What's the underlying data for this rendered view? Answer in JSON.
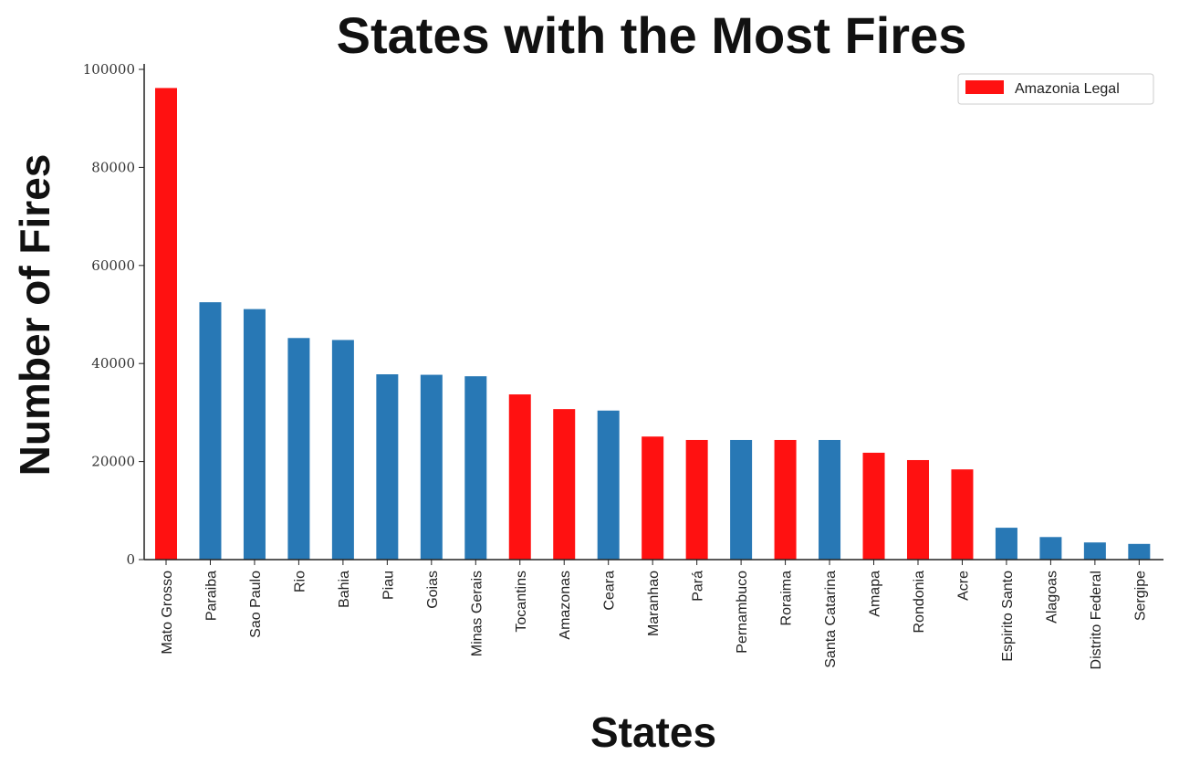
{
  "chart_data": {
    "type": "bar",
    "title": "States with the Most Fires",
    "xlabel": "States",
    "ylabel": "Number of Fires",
    "ylim": [
      0,
      100000
    ],
    "yticks": [
      0,
      20000,
      40000,
      60000,
      80000,
      100000
    ],
    "ytick_labels": [
      "0",
      "20000",
      "40000",
      "60000",
      "80000",
      "100000"
    ],
    "grid": false,
    "legend": {
      "placement": "top-right",
      "entries": [
        {
          "label": "Amazonia Legal",
          "color": "#ff1111"
        }
      ]
    },
    "colors": {
      "amazonia_legal": "#ff1111",
      "other": "#2878b5"
    },
    "categories": [
      "Mato Grosso",
      "Paraiba",
      "Sao Paulo",
      "Rio",
      "Bahia",
      "Piau",
      "Goias",
      "Minas Gerais",
      "Tocantins",
      "Amazonas",
      "Ceara",
      "Maranhao",
      "Pará",
      "Pernambuco",
      "Roraima",
      "Santa Catarina",
      "Amapa",
      "Rondonia",
      "Acre",
      "Espirito Santo",
      "Alagoas",
      "Distrito Federal",
      "Sergipe"
    ],
    "values": [
      96200,
      52500,
      51100,
      45200,
      44800,
      37800,
      37700,
      37400,
      33700,
      30700,
      30400,
      25100,
      24400,
      24400,
      24400,
      24400,
      21800,
      20300,
      18400,
      6500,
      4600,
      3500,
      3200
    ],
    "amazonia_legal": [
      true,
      false,
      false,
      false,
      false,
      false,
      false,
      false,
      true,
      true,
      false,
      true,
      true,
      false,
      true,
      false,
      true,
      true,
      true,
      false,
      false,
      false,
      false
    ]
  }
}
